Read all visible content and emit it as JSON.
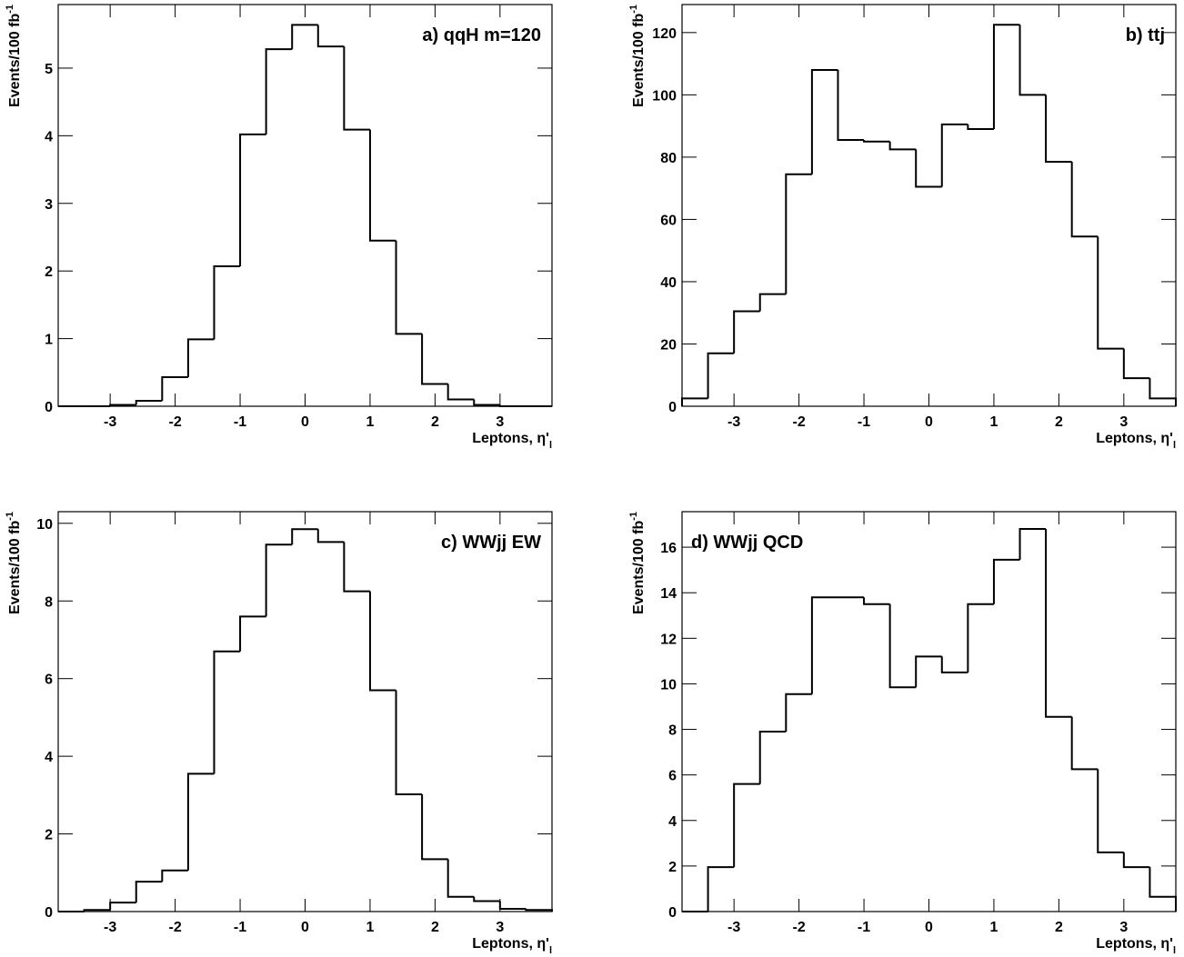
{
  "chart_data": [
    {
      "type": "histogram",
      "title": "a) qqH m=120",
      "title_loc": "right",
      "ylabel": "Events/100 fb",
      "ylabel_sup": "-1",
      "xlabel": "Leptons, η'",
      "xlabel_sub": "l",
      "bins": [
        -3.8,
        -3.4,
        -3.0,
        -2.6,
        -2.2,
        -1.8,
        -1.4,
        -1.0,
        -0.6,
        -0.2,
        0.2,
        0.6,
        1.0,
        1.4,
        1.8,
        2.2,
        2.6,
        3.0,
        3.4,
        3.8
      ],
      "counts": [
        0,
        0,
        0.02,
        0.08,
        0.43,
        0.99,
        2.07,
        4.02,
        5.28,
        5.64,
        5.32,
        4.09,
        2.45,
        1.07,
        0.33,
        0.1,
        0.02,
        0,
        0
      ],
      "color": "#000000",
      "xlim": [
        -3.8,
        3.8
      ],
      "xticks": [
        -3,
        -2,
        -1,
        0,
        1,
        2,
        3
      ],
      "ylim": [
        0,
        5.94
      ],
      "yticks": [
        0,
        1,
        2,
        3,
        4,
        5
      ]
    },
    {
      "type": "histogram",
      "title": "b) ttj",
      "title_loc": "right",
      "ylabel": "Events/100 fb",
      "ylabel_sup": "-1",
      "xlabel": "Leptons, η'",
      "xlabel_sub": "l",
      "bins": [
        -3.8,
        -3.4,
        -3.0,
        -2.6,
        -2.2,
        -1.8,
        -1.4,
        -1.0,
        -0.6,
        -0.2,
        0.2,
        0.6,
        1.0,
        1.4,
        1.8,
        2.2,
        2.6,
        3.0,
        3.4,
        3.8
      ],
      "counts": [
        2.5,
        17,
        30.5,
        36,
        74.5,
        108,
        85.5,
        85,
        82.5,
        70.5,
        90.5,
        89,
        122.5,
        100,
        78.5,
        54.5,
        18.5,
        9,
        2.5
      ],
      "color": "#000000",
      "xlim": [
        -3.8,
        3.8
      ],
      "xticks": [
        -3,
        -2,
        -1,
        0,
        1,
        2,
        3
      ],
      "ylim": [
        0,
        129
      ],
      "yticks": [
        0,
        20,
        40,
        60,
        80,
        100,
        120
      ]
    },
    {
      "type": "histogram",
      "title": "c) WWjj EW",
      "title_loc": "right",
      "ylabel": "Events/100 fb",
      "ylabel_sup": "-1",
      "xlabel": "Leptons, η'",
      "xlabel_sub": "l",
      "bins": [
        -3.8,
        -3.4,
        -3.0,
        -2.6,
        -2.2,
        -1.8,
        -1.4,
        -1.0,
        -0.6,
        -0.2,
        0.2,
        0.6,
        1.0,
        1.4,
        1.8,
        2.2,
        2.6,
        3.0,
        3.4,
        3.8
      ],
      "counts": [
        0,
        0.04,
        0.23,
        0.77,
        1.06,
        3.55,
        6.7,
        7.6,
        9.45,
        9.85,
        9.52,
        8.25,
        5.7,
        3.02,
        1.35,
        0.38,
        0.27,
        0.07,
        0.04
      ],
      "color": "#000000",
      "xlim": [
        -3.8,
        3.8
      ],
      "xticks": [
        -3,
        -2,
        -1,
        0,
        1,
        2,
        3
      ],
      "ylim": [
        0,
        10.3
      ],
      "yticks": [
        0,
        2,
        4,
        6,
        8,
        10
      ]
    },
    {
      "type": "histogram",
      "title": "d) WWjj QCD",
      "title_loc": "left",
      "ylabel": "Events/100 fb",
      "ylabel_sup": "-1",
      "xlabel": "Leptons, η'",
      "xlabel_sub": "l",
      "bins": [
        -3.8,
        -3.4,
        -3.0,
        -2.6,
        -2.2,
        -1.8,
        -1.4,
        -1.0,
        -0.6,
        -0.2,
        0.2,
        0.6,
        1.0,
        1.4,
        1.8,
        2.2,
        2.6,
        3.0,
        3.4,
        3.8
      ],
      "counts": [
        0,
        1.95,
        5.6,
        7.9,
        9.55,
        13.8,
        13.8,
        13.5,
        9.85,
        11.2,
        10.5,
        13.5,
        15.45,
        16.8,
        8.55,
        6.25,
        2.6,
        1.95,
        0.65
      ],
      "color": "#000000",
      "xlim": [
        -3.8,
        3.8
      ],
      "xticks": [
        -3,
        -2,
        -1,
        0,
        1,
        2,
        3
      ],
      "ylim": [
        0,
        17.56
      ],
      "yticks": [
        0,
        2,
        4,
        6,
        8,
        10,
        12,
        14,
        16
      ]
    }
  ]
}
